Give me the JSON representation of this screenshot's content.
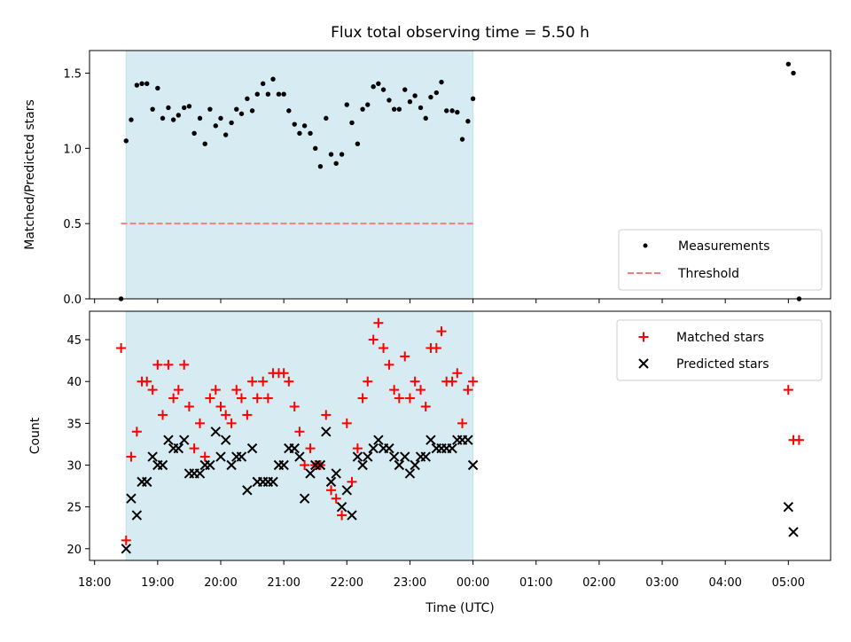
{
  "chart_data": [
    {
      "type": "scatter",
      "title": "Flux total observing time = 5.50 h",
      "ylabel": "Matched/Predicted stars",
      "xlabel": "",
      "ylim": [
        0,
        1.65
      ],
      "yticks": [
        0.0,
        0.5,
        1.0,
        1.5
      ],
      "ytick_labels": [
        "0.0",
        "0.5",
        "1.0",
        "1.5"
      ],
      "shaded_span_hours": [
        18.5,
        24.0
      ],
      "threshold": {
        "name": "Threshold",
        "value": 0.5,
        "x_range": [
          18.42,
          24.0
        ],
        "color": "#f08080"
      },
      "legend": {
        "location": "lower-right",
        "entries": [
          "Measurements",
          "Threshold"
        ]
      },
      "series": [
        {
          "name": "Measurements",
          "color": "#000000",
          "x": [
            18.42,
            18.5,
            18.58,
            18.67,
            18.75,
            18.83,
            18.92,
            19.0,
            19.08,
            19.17,
            19.25,
            19.33,
            19.42,
            19.5,
            19.58,
            19.67,
            19.75,
            19.83,
            19.92,
            20.0,
            20.08,
            20.17,
            20.25,
            20.33,
            20.42,
            20.5,
            20.58,
            20.67,
            20.75,
            20.83,
            20.92,
            21.0,
            21.08,
            21.17,
            21.25,
            21.33,
            21.42,
            21.5,
            21.58,
            21.67,
            21.75,
            21.83,
            21.92,
            22.0,
            22.08,
            22.17,
            22.25,
            22.33,
            22.42,
            22.5,
            22.58,
            22.67,
            22.75,
            22.83,
            22.92,
            23.0,
            23.08,
            23.17,
            23.25,
            23.33,
            23.42,
            23.5,
            23.58,
            23.67,
            23.75,
            23.83,
            23.92,
            24.0,
            29.0,
            29.08,
            29.17
          ],
          "y": [
            0.0,
            1.05,
            1.19,
            1.42,
            1.43,
            1.43,
            1.26,
            1.4,
            1.2,
            1.27,
            1.19,
            1.22,
            1.27,
            1.28,
            1.1,
            1.2,
            1.03,
            1.26,
            1.15,
            1.2,
            1.09,
            1.17,
            1.26,
            1.23,
            1.33,
            1.25,
            1.36,
            1.43,
            1.36,
            1.46,
            1.36,
            1.36,
            1.25,
            1.16,
            1.1,
            1.15,
            1.1,
            1.0,
            0.88,
            1.2,
            0.96,
            0.9,
            0.96,
            1.29,
            1.17,
            1.03,
            1.26,
            1.29,
            1.41,
            1.43,
            1.39,
            1.32,
            1.26,
            1.26,
            1.39,
            1.31,
            1.35,
            1.27,
            1.2,
            1.34,
            1.37,
            1.44,
            1.25,
            1.25,
            1.24,
            1.06,
            1.18,
            1.33,
            1.56,
            1.5,
            0.0
          ]
        }
      ]
    },
    {
      "type": "scatter",
      "title": "",
      "xlabel": "Time (UTC)",
      "ylabel": "Count",
      "xlim_hours": [
        17.92,
        29.67
      ],
      "ylim": [
        18.6,
        48.4
      ],
      "yticks": [
        20,
        25,
        30,
        35,
        40,
        45
      ],
      "ytick_labels": [
        "20",
        "25",
        "30",
        "35",
        "40",
        "45"
      ],
      "xticks_hours": [
        18,
        19,
        20,
        21,
        22,
        23,
        24,
        25,
        26,
        27,
        28,
        29
      ],
      "xtick_labels": [
        "18:00",
        "19:00",
        "20:00",
        "21:00",
        "22:00",
        "23:00",
        "00:00",
        "01:00",
        "02:00",
        "03:00",
        "04:00",
        "05:00"
      ],
      "shaded_span_hours": [
        18.5,
        24.0
      ],
      "legend": {
        "location": "top-right",
        "entries": [
          "Matched stars",
          "Predicted stars"
        ]
      },
      "series": [
        {
          "name": "Matched stars",
          "marker": "plus",
          "color": "#ff0000",
          "x": [
            18.42,
            18.5,
            18.58,
            18.67,
            18.75,
            18.83,
            18.92,
            19.0,
            19.08,
            19.17,
            19.25,
            19.33,
            19.42,
            19.5,
            19.58,
            19.67,
            19.75,
            19.83,
            19.92,
            20.0,
            20.08,
            20.17,
            20.25,
            20.33,
            20.42,
            20.5,
            20.58,
            20.67,
            20.75,
            20.83,
            20.92,
            21.0,
            21.08,
            21.17,
            21.25,
            21.33,
            21.42,
            21.5,
            21.58,
            21.67,
            21.75,
            21.83,
            21.92,
            22.0,
            22.08,
            22.17,
            22.25,
            22.33,
            22.42,
            22.5,
            22.58,
            22.67,
            22.75,
            22.83,
            22.92,
            23.0,
            23.08,
            23.17,
            23.25,
            23.33,
            23.42,
            23.5,
            23.58,
            23.67,
            23.75,
            23.83,
            23.92,
            24.0,
            29.0,
            29.08,
            29.17
          ],
          "y": [
            44,
            21,
            31,
            34,
            40,
            40,
            39,
            42,
            36,
            42,
            38,
            39,
            42,
            37,
            32,
            35,
            31,
            38,
            39,
            37,
            36,
            35,
            39,
            38,
            36,
            40,
            38,
            40,
            38,
            41,
            41,
            41,
            40,
            37,
            34,
            30,
            32,
            30,
            30,
            36,
            27,
            26,
            24,
            35,
            28,
            32,
            38,
            40,
            45,
            47,
            44,
            42,
            39,
            38,
            43,
            38,
            40,
            39,
            37,
            44,
            44,
            46,
            40,
            40,
            41,
            35,
            39,
            40,
            39,
            33,
            33
          ]
        },
        {
          "name": "Predicted stars",
          "marker": "x",
          "color": "#000000",
          "x": [
            18.5,
            18.58,
            18.67,
            18.75,
            18.83,
            18.92,
            19.0,
            19.08,
            19.17,
            19.25,
            19.33,
            19.42,
            19.5,
            19.58,
            19.67,
            19.75,
            19.83,
            19.92,
            20.0,
            20.08,
            20.17,
            20.25,
            20.33,
            20.42,
            20.5,
            20.58,
            20.67,
            20.75,
            20.83,
            20.92,
            21.0,
            21.08,
            21.17,
            21.25,
            21.33,
            21.42,
            21.5,
            21.58,
            21.67,
            21.75,
            21.83,
            21.92,
            22.0,
            22.08,
            22.17,
            22.25,
            22.33,
            22.42,
            22.5,
            22.58,
            22.67,
            22.75,
            22.83,
            22.92,
            23.0,
            23.08,
            23.17,
            23.25,
            23.33,
            23.42,
            23.5,
            23.58,
            23.67,
            23.75,
            23.83,
            23.92,
            24.0,
            29.0,
            29.08
          ],
          "y": [
            20,
            26,
            24,
            28,
            28,
            31,
            30,
            30,
            33,
            32,
            32,
            33,
            29,
            29,
            29,
            30,
            30,
            34,
            31,
            33,
            30,
            31,
            31,
            27,
            32,
            28,
            28,
            28,
            28,
            30,
            30,
            32,
            32,
            31,
            26,
            29,
            30,
            30,
            34,
            28,
            29,
            25,
            27,
            24,
            31,
            30,
            31,
            32,
            33,
            32,
            32,
            31,
            30,
            31,
            29,
            30,
            31,
            31,
            33,
            32,
            32,
            32,
            32,
            33,
            33,
            33,
            30,
            25,
            22
          ]
        }
      ]
    }
  ]
}
